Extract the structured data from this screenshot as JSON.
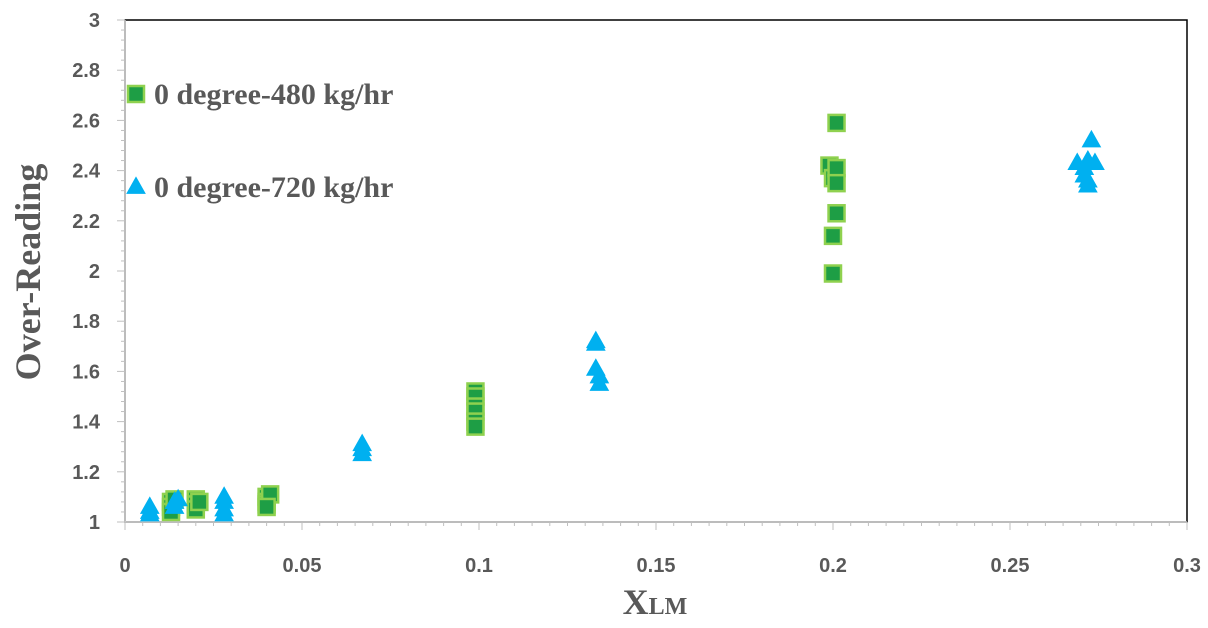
{
  "chart_data": {
    "type": "scatter",
    "title": "",
    "xlabel": "X",
    "xlabel_subscript": "LM",
    "ylabel": "Over-Reading",
    "xlim": [
      0,
      0.3
    ],
    "ylim": [
      1,
      3
    ],
    "x_ticks": [
      "0",
      "0.05",
      "0.1",
      "0.15",
      "0.2",
      "0.25",
      "0.3"
    ],
    "y_ticks": [
      "1",
      "1.2",
      "1.4",
      "1.6",
      "1.8",
      "2",
      "2.2",
      "2.4",
      "2.6",
      "2.8",
      "3"
    ],
    "grid": false,
    "legend_position": "top-left",
    "series": [
      {
        "name": "0 degree-480 kg/hr",
        "marker": "square",
        "fill": "#1e9e45",
        "stroke": "#8fd14f",
        "points": [
          [
            0.013,
            1.08
          ],
          [
            0.013,
            1.06
          ],
          [
            0.013,
            1.04
          ],
          [
            0.014,
            1.09
          ],
          [
            0.02,
            1.09
          ],
          [
            0.02,
            1.07
          ],
          [
            0.02,
            1.05
          ],
          [
            0.021,
            1.08
          ],
          [
            0.04,
            1.1
          ],
          [
            0.04,
            1.08
          ],
          [
            0.04,
            1.07
          ],
          [
            0.041,
            1.11
          ],
          [
            0.04,
            1.06
          ],
          [
            0.099,
            1.52
          ],
          [
            0.099,
            1.5
          ],
          [
            0.099,
            1.46
          ],
          [
            0.099,
            1.44
          ],
          [
            0.099,
            1.4
          ],
          [
            0.099,
            1.38
          ],
          [
            0.199,
            2.42
          ],
          [
            0.2,
            2.37
          ],
          [
            0.201,
            2.41
          ],
          [
            0.201,
            2.35
          ],
          [
            0.201,
            2.59
          ],
          [
            0.201,
            2.23
          ],
          [
            0.2,
            2.14
          ],
          [
            0.2,
            1.99
          ]
        ]
      },
      {
        "name": "0 degree-720 kg/hr",
        "marker": "triangle",
        "fill": "#00b0f0",
        "stroke": "#00b0f0",
        "points": [
          [
            0.007,
            1.06
          ],
          [
            0.007,
            1.04
          ],
          [
            0.007,
            1.03
          ],
          [
            0.014,
            1.08
          ],
          [
            0.014,
            1.06
          ],
          [
            0.015,
            1.09
          ],
          [
            0.028,
            1.1
          ],
          [
            0.028,
            1.08
          ],
          [
            0.028,
            1.05
          ],
          [
            0.028,
            1.03
          ],
          [
            0.067,
            1.31
          ],
          [
            0.067,
            1.29
          ],
          [
            0.067,
            1.27
          ],
          [
            0.133,
            1.72
          ],
          [
            0.133,
            1.71
          ],
          [
            0.133,
            1.61
          ],
          [
            0.134,
            1.58
          ],
          [
            0.134,
            1.55
          ],
          [
            0.269,
            2.43
          ],
          [
            0.271,
            2.41
          ],
          [
            0.271,
            2.38
          ],
          [
            0.272,
            2.36
          ],
          [
            0.272,
            2.34
          ],
          [
            0.272,
            2.44
          ],
          [
            0.273,
            2.52
          ],
          [
            0.274,
            2.43
          ]
        ]
      }
    ]
  }
}
